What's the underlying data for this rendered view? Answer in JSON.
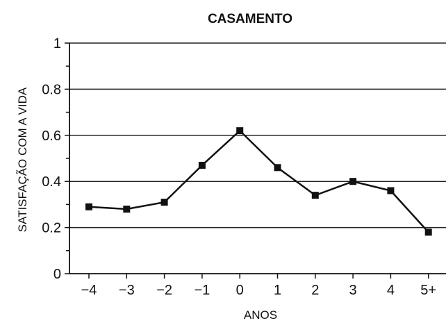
{
  "chart_data": {
    "type": "line",
    "title": "CASAMENTO",
    "xlabel": "ANOS",
    "ylabel": "SATISFAÇÃO COM A VIDA",
    "categories": [
      "−4",
      "−3",
      "−2",
      "−1",
      "0",
      "1",
      "2",
      "3",
      "4",
      "5+"
    ],
    "series": [
      {
        "values": [
          0.29,
          0.28,
          0.31,
          0.47,
          0.62,
          0.46,
          0.34,
          0.4,
          0.36,
          0.18
        ]
      }
    ],
    "ylim": [
      0,
      1
    ],
    "yticks": [
      0,
      0.2,
      0.4,
      0.6,
      0.8,
      1
    ],
    "ytick_labels": [
      "0",
      "0.2",
      "0.4",
      "0.6",
      "0.8",
      "1"
    ],
    "grid": true,
    "colors": {
      "line": "#111111",
      "grid": "#222222"
    }
  }
}
